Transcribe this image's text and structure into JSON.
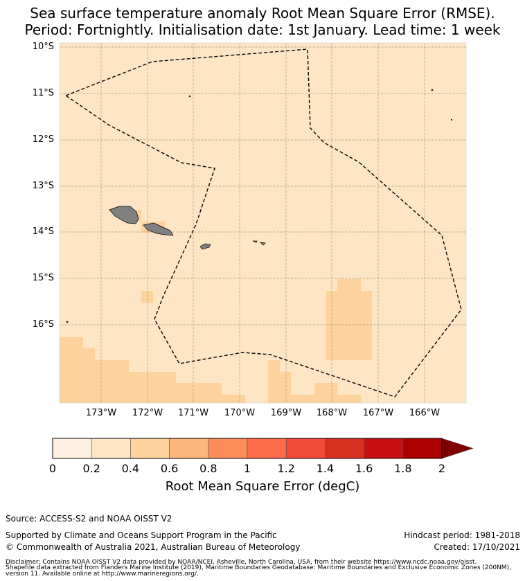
{
  "title": {
    "line1": "Sea surface temperature anomaly Root Mean Square Error (RMSE).",
    "line2": "Period: Fortnightly. Initialisation date: 1st January. Lead time: 1 week"
  },
  "map": {
    "lat_labels": [
      "10°S",
      "11°S",
      "12°S",
      "13°S",
      "14°S",
      "15°S",
      "16°S"
    ],
    "lon_labels": [
      "173°W",
      "172°W",
      "171°W",
      "170°W",
      "169°W",
      "168°W",
      "167°W",
      "166°W"
    ],
    "background_rmse_color": "#fde5c5",
    "elevated_rmse_color": "#fdd29c",
    "land_color": "#808080",
    "boundary_style": "dashed black line (Exclusive Economic Zone)"
  },
  "colorbar": {
    "label": "Root Mean Square Error (degC)",
    "ticks": [
      "0",
      "0.2",
      "0.4",
      "0.6",
      "0.8",
      "1",
      "1.2",
      "1.4",
      "1.6",
      "1.8",
      "2"
    ],
    "colors": [
      "#fff2e2",
      "#fde5c5",
      "#fdd29c",
      "#fdb67a",
      "#fc8d59",
      "#fc6b4a",
      "#f24a3a",
      "#d63020",
      "#c80f12",
      "#ad0000",
      "#800000"
    ]
  },
  "footer": {
    "source": "Source: ACCESS-S2 and NOAA OISST V2",
    "supported": "Supported by Climate and Oceans Support Program in the Pacific",
    "copyright": "© Commonwealth of Australia 2021, Australian Bureau of Meteorology",
    "hindcast": "Hindcast period: 1981-2018",
    "created": "Created: 17/10/2021",
    "disclaimer1": "Disclaimer: Contains NOAA OISST V2 data provided by NOAA/NCEI, Asheville, North Carolina, USA, from their website https://www.ncdc.noaa.gov/oisst.",
    "disclaimer2": "Shapefile data extracted from Flanders Marine Institute (2019), Maritime Boundaries Geodatabase: Maritime Boundaries and Exclusive Economic Zones (200NM),",
    "disclaimer3": "version 11. Available online at http://www.marineregions.org/."
  }
}
